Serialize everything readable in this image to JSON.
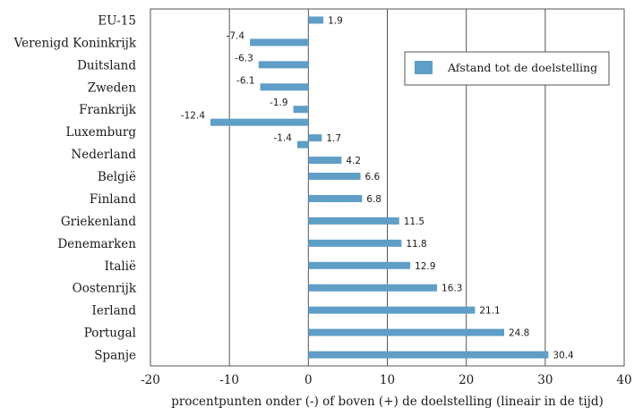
{
  "chart_data": {
    "type": "bar",
    "orientation": "horizontal",
    "categories": [
      "EU-15",
      "Verenigd Koninkrijk",
      "Duitsland",
      "Zweden",
      "Frankrijk",
      "Luxemburg",
      "Luxemburg",
      "Nederland",
      "Nederland",
      "België",
      "Finland",
      "Griekenland",
      "Denemarken",
      "Italië",
      "Oostenrijk",
      "Ierland",
      "Portugal",
      "Spanje"
    ],
    "category_labels": [
      "EU-15",
      "Verenigd Koninkrijk",
      "Duitsland",
      "Zweden",
      "Frankrijk",
      "Luxemburg",
      "Nederland",
      "België",
      "Finland",
      "Griekenland",
      "Denemarken",
      "Italië",
      "Oostenrijk",
      "Ierland",
      "Portugal",
      "Spanje"
    ],
    "bars": [
      {
        "category": "EU-15",
        "value": 1.9,
        "label": "1.9"
      },
      {
        "category": "Verenigd Koninkrijk",
        "value": -7.4,
        "label": "-7.4"
      },
      {
        "category": "Duitsland",
        "value": -6.3,
        "label": "-6.3"
      },
      {
        "category": "Zweden",
        "value": -6.1,
        "label": "-6.1"
      },
      {
        "category": "Frankrijk",
        "value": -1.9,
        "label": "-1.9"
      },
      {
        "category": "Luxemburg",
        "value": -12.4,
        "label": "-12.4"
      },
      {
        "category": "Luxemburg",
        "value": 1.7,
        "label": "1.7"
      },
      {
        "category": "Nederland",
        "value": -1.4,
        "label": "-1.4"
      },
      {
        "category": "Nederland",
        "value": 4.2,
        "label": "4.2"
      },
      {
        "category": "België",
        "value": 6.6,
        "label": "6.6"
      },
      {
        "category": "Finland",
        "value": 6.8,
        "label": "6.8"
      },
      {
        "category": "Griekenland",
        "value": 11.5,
        "label": "11.5"
      },
      {
        "category": "Denemarken",
        "value": 11.8,
        "label": "11.8"
      },
      {
        "category": "Italië",
        "value": 12.9,
        "label": "12.9"
      },
      {
        "category": "Oostenrijk",
        "value": 16.3,
        "label": "16.3"
      },
      {
        "category": "Ierland",
        "value": 21.1,
        "label": "21.1"
      },
      {
        "category": "Portugal",
        "value": 24.8,
        "label": "24.8"
      },
      {
        "category": "Spanje",
        "value": 30.4,
        "label": "30.4"
      }
    ],
    "series": [
      {
        "name": "Afstand tot de doelstelling",
        "color": "#5f9ec6"
      }
    ],
    "xlim": [
      -20,
      40
    ],
    "xticks": [
      -20,
      -10,
      0,
      10,
      20,
      30,
      40
    ],
    "xtick_labels": [
      "-20",
      "-10",
      "0",
      "10",
      "20",
      "30",
      "40"
    ],
    "xlabel": "procentpunten onder (-) of boven (+) de doelstelling (lineair in de tijd)",
    "ylabel": "",
    "title": "",
    "legend": {
      "label": "Afstand tot de doelstelling",
      "position": "top-right"
    },
    "grid": {
      "vertical": true,
      "horizontal": false
    },
    "colors": {
      "bar": "#5f9ec6",
      "grid": "#555555",
      "frame": "#555555"
    }
  }
}
